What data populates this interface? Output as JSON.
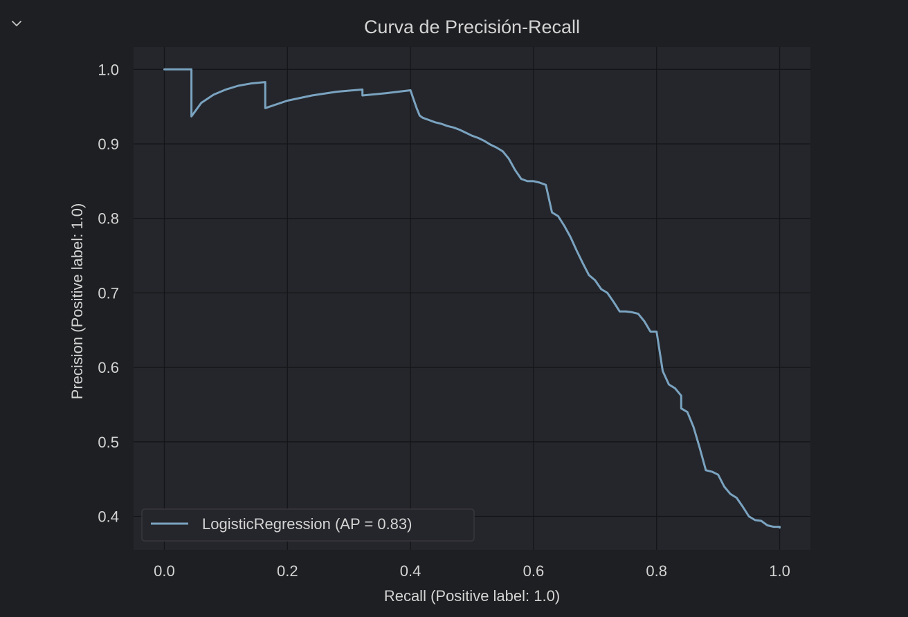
{
  "cell": {
    "collapse_icon": "chevron-down-icon"
  },
  "colors": {
    "background": "#1e1f22",
    "plot_background": "#25262b",
    "grid": "#141518",
    "line": "#7aa3c0",
    "text": "#d4d4d4"
  },
  "chart_data": {
    "type": "line",
    "title": "Curva de Precisión-Recall",
    "xlabel": "Recall (Positive label: 1.0)",
    "ylabel": "Precision (Positive label: 1.0)",
    "xlim": [
      -0.05,
      1.05
    ],
    "ylim": [
      0.355,
      1.03
    ],
    "xticks": [
      0.0,
      0.2,
      0.4,
      0.6,
      0.8,
      1.0
    ],
    "xtick_labels": [
      "0.0",
      "0.2",
      "0.4",
      "0.6",
      "0.8",
      "1.0"
    ],
    "yticks": [
      0.4,
      0.5,
      0.6,
      0.7,
      0.8,
      0.9,
      1.0
    ],
    "ytick_labels": [
      "0.4",
      "0.5",
      "0.6",
      "0.7",
      "0.8",
      "0.9",
      "1.0"
    ],
    "grid": true,
    "legend_position": "lower-left",
    "series": [
      {
        "name": "LogisticRegression (AP = 0.83)",
        "x": [
          0.0,
          0.044,
          0.044,
          0.06,
          0.08,
          0.1,
          0.12,
          0.14,
          0.164,
          0.164,
          0.2,
          0.24,
          0.28,
          0.322,
          0.322,
          0.36,
          0.4,
          0.4,
          0.405,
          0.41,
          0.415,
          0.42,
          0.43,
          0.44,
          0.45,
          0.46,
          0.47,
          0.48,
          0.49,
          0.5,
          0.51,
          0.52,
          0.53,
          0.54,
          0.55,
          0.56,
          0.57,
          0.58,
          0.59,
          0.6,
          0.61,
          0.62,
          0.63,
          0.64,
          0.65,
          0.66,
          0.67,
          0.68,
          0.69,
          0.7,
          0.71,
          0.72,
          0.73,
          0.74,
          0.75,
          0.76,
          0.77,
          0.78,
          0.79,
          0.8,
          0.81,
          0.82,
          0.83,
          0.84,
          0.84,
          0.85,
          0.86,
          0.87,
          0.88,
          0.89,
          0.9,
          0.91,
          0.92,
          0.93,
          0.94,
          0.95,
          0.96,
          0.97,
          0.98,
          0.99,
          1.0,
          1.0
        ],
        "y": [
          1.0,
          1.0,
          0.937,
          0.955,
          0.966,
          0.973,
          0.978,
          0.981,
          0.983,
          0.948,
          0.958,
          0.965,
          0.97,
          0.973,
          0.965,
          0.968,
          0.972,
          0.972,
          0.96,
          0.948,
          0.938,
          0.935,
          0.932,
          0.929,
          0.927,
          0.924,
          0.922,
          0.919,
          0.915,
          0.911,
          0.908,
          0.904,
          0.899,
          0.895,
          0.89,
          0.88,
          0.865,
          0.853,
          0.85,
          0.85,
          0.848,
          0.845,
          0.808,
          0.803,
          0.79,
          0.775,
          0.757,
          0.74,
          0.724,
          0.717,
          0.705,
          0.7,
          0.688,
          0.675,
          0.675,
          0.674,
          0.672,
          0.662,
          0.648,
          0.648,
          0.595,
          0.577,
          0.572,
          0.562,
          0.545,
          0.54,
          0.52,
          0.492,
          0.462,
          0.46,
          0.456,
          0.44,
          0.43,
          0.425,
          0.413,
          0.4,
          0.395,
          0.394,
          0.388,
          0.386,
          0.386,
          0.385
        ]
      }
    ]
  }
}
